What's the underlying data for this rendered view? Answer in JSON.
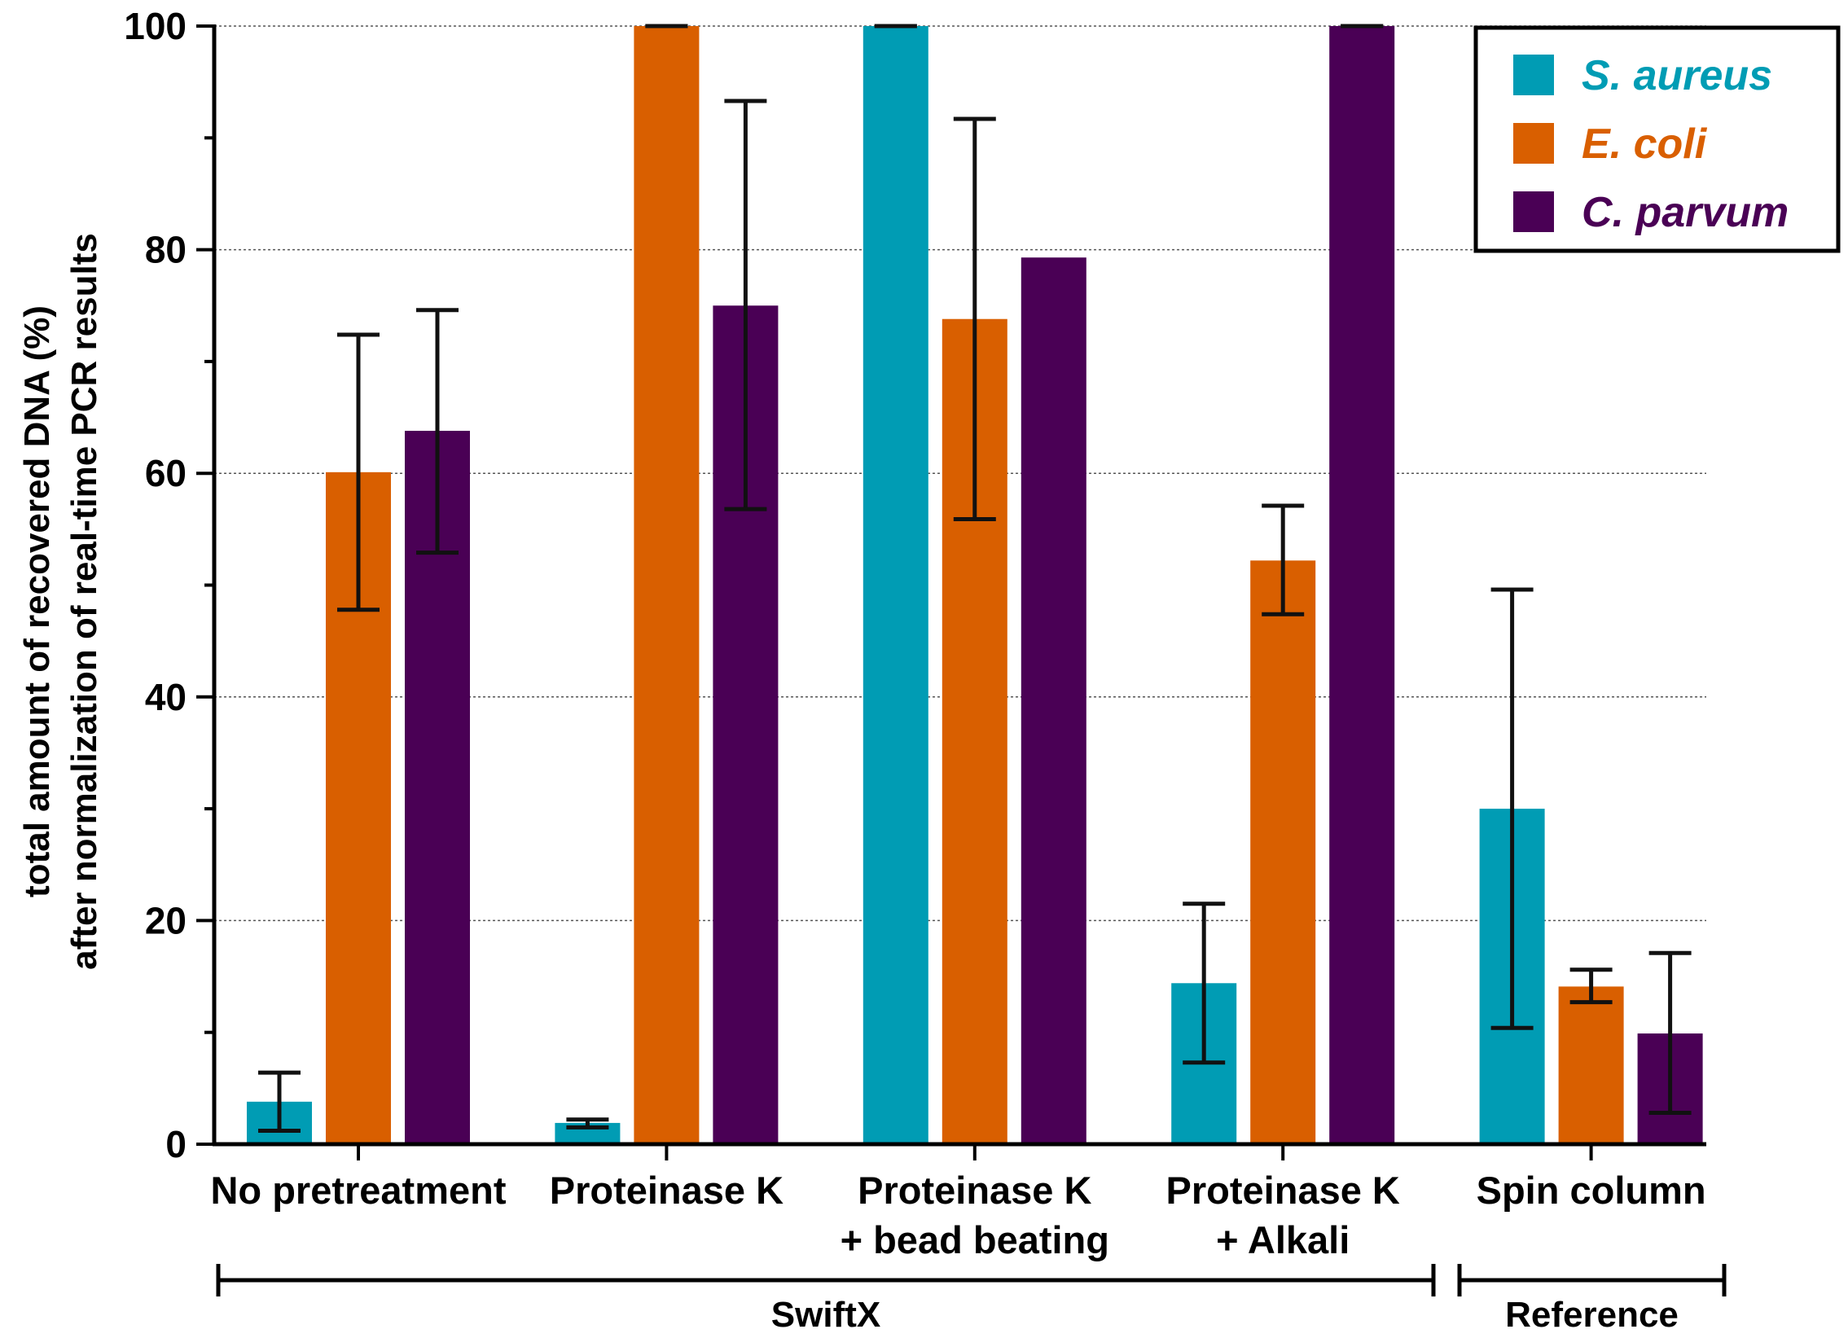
{
  "chart_data": {
    "type": "bar",
    "title": "",
    "xlabel": "",
    "ylabel": [
      "total amount of recovered DNA (%)",
      "after normalization of real-time PCR results"
    ],
    "ylim": [
      0,
      100
    ],
    "yticks": [
      0,
      20,
      40,
      60,
      80,
      100
    ],
    "grid": true,
    "legend_position": "top-right",
    "categories": [
      [
        "No pretreatment"
      ],
      [
        "Proteinase K"
      ],
      [
        "Proteinase K",
        "+ bead beating"
      ],
      [
        "Proteinase K",
        "+ Alkali"
      ],
      [
        "Spin column"
      ]
    ],
    "series": [
      {
        "name": "S. aureus",
        "color": "#009cb4",
        "values": [
          3.8,
          1.9,
          100,
          14.4,
          30
        ],
        "err_low": [
          1.2,
          1.5,
          100,
          7.3,
          10.4
        ],
        "err_high": [
          6.4,
          2.2,
          100,
          21.5,
          49.6
        ]
      },
      {
        "name": "E. coli",
        "color": "#d95f00",
        "values": [
          60.1,
          100,
          73.8,
          52.2,
          14.1
        ],
        "err_low": [
          47.8,
          100,
          55.9,
          47.4,
          12.7
        ],
        "err_high": [
          72.4,
          100,
          91.7,
          57.1,
          15.6
        ]
      },
      {
        "name": "C. parvum",
        "color": "#4a0055",
        "values": [
          63.8,
          75,
          79.3,
          100,
          9.9
        ],
        "err_low": [
          52.9,
          56.8,
          null,
          100,
          2.8
        ],
        "err_high": [
          74.6,
          93.3,
          null,
          100,
          17.1
        ]
      }
    ],
    "groups": [
      {
        "label": "SwiftX",
        "categories": [
          0,
          1,
          2,
          3
        ]
      },
      {
        "label": "Reference",
        "categories": [
          4
        ]
      }
    ]
  }
}
